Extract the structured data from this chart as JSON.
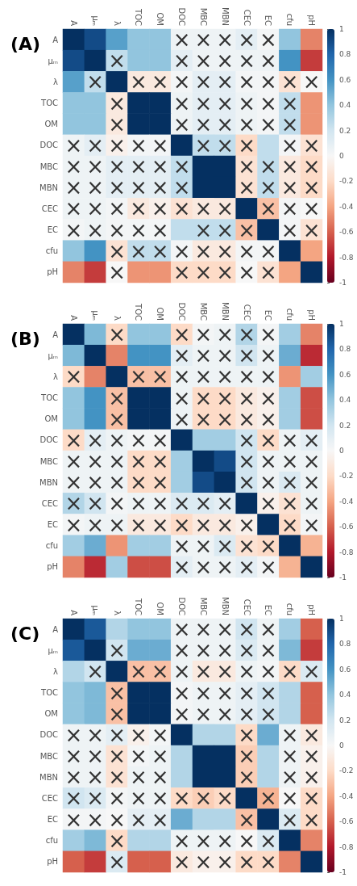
{
  "chart_data": [
    {
      "type": "heatmap",
      "title": "(A)",
      "categories": [
        "A",
        "μₘ",
        "λ",
        "TOC",
        "OM",
        "DOC",
        "MBC",
        "MBN",
        "CEC",
        "EC",
        "cfu",
        "pH"
      ],
      "y_categories": [
        "A",
        "μₘ",
        "λ",
        "TOC",
        "OM",
        "DOC",
        "MBC",
        "MBN",
        "CEC",
        "EC",
        "cfu",
        "pH"
      ],
      "clim": [
        -1,
        1
      ],
      "cticks": [
        -1,
        -0.8,
        -0.6,
        -0.4,
        -0.2,
        0,
        0.2,
        0.4,
        0.6,
        0.8,
        1
      ],
      "cells": [
        [
          1,
          0.9,
          0.55,
          0.4,
          0.4,
          0.05,
          0.05,
          0.05,
          0.1,
          0.02,
          0.4,
          -0.5
        ],
        [
          0.9,
          1,
          0.25,
          0.4,
          0.4,
          0.1,
          0.05,
          0.05,
          0.05,
          0.05,
          0.6,
          -0.7
        ],
        [
          0.55,
          0.25,
          1,
          -0.1,
          -0.1,
          0.02,
          0.1,
          0.1,
          0.02,
          0.02,
          -0.15,
          0
        ],
        [
          0.4,
          0.4,
          -0.1,
          1,
          1,
          0.05,
          0.1,
          0.1,
          0.05,
          0.02,
          0.25,
          -0.45
        ],
        [
          0.4,
          0.4,
          -0.1,
          1,
          1,
          0.05,
          0.1,
          0.1,
          0.05,
          0.02,
          0.25,
          -0.45
        ],
        [
          0.05,
          0.1,
          -0.05,
          0.02,
          0.02,
          1,
          0.25,
          0.25,
          -0.2,
          0.25,
          0.02,
          -0.15
        ],
        [
          0.05,
          0.05,
          0.1,
          0.1,
          0.1,
          0.25,
          1,
          1,
          -0.15,
          0.25,
          -0.1,
          -0.2
        ],
        [
          0.05,
          0.05,
          0.1,
          0.1,
          0.1,
          0.25,
          1,
          1,
          -0.15,
          0.25,
          -0.1,
          -0.2
        ],
        [
          0.05,
          0.05,
          0.02,
          -0.1,
          -0.05,
          -0.15,
          -0.1,
          -0.1,
          1,
          -0.3,
          0.02,
          0
        ],
        [
          0.02,
          0.05,
          0.02,
          0.02,
          0.02,
          0.25,
          0.25,
          0.25,
          -0.3,
          1,
          0.02,
          -0.15
        ],
        [
          0.4,
          0.6,
          -0.15,
          0.25,
          0.25,
          0.02,
          -0.1,
          -0.1,
          0.02,
          0.02,
          1,
          -0.4
        ],
        [
          -0.5,
          -0.7,
          0,
          -0.45,
          -0.45,
          -0.2,
          -0.2,
          -0.2,
          0,
          -0.15,
          -0.4,
          1
        ]
      ],
      "cell_labels": [
        [
          null,
          null,
          null,
          null,
          null,
          "×",
          "×",
          "×",
          "×",
          "×",
          null,
          null
        ],
        [
          null,
          null,
          "×",
          null,
          null,
          "×",
          "×",
          "×",
          "×",
          "×",
          null,
          null
        ],
        [
          null,
          "×",
          null,
          "×",
          "×",
          "×",
          "×",
          "×",
          "×",
          "×",
          "×",
          "×"
        ],
        [
          null,
          null,
          "×",
          null,
          null,
          "×",
          "×",
          "×",
          "×",
          "×",
          "×",
          null
        ],
        [
          null,
          null,
          "×",
          null,
          null,
          "×",
          "×",
          "×",
          "×",
          "×",
          "×",
          null
        ],
        [
          "×",
          "×",
          "×",
          "×",
          "×",
          null,
          "×",
          "×",
          "×",
          null,
          "×",
          "×"
        ],
        [
          "×",
          "×",
          "×",
          "×",
          "×",
          "×",
          null,
          null,
          "×",
          "×",
          "×",
          "×"
        ],
        [
          "×",
          "×",
          "×",
          "×",
          "×",
          "×",
          null,
          null,
          "×",
          "×",
          "×",
          "×"
        ],
        [
          "×",
          "×",
          "×",
          "×",
          "×",
          "×",
          "×",
          "×",
          null,
          "×",
          "×",
          "×"
        ],
        [
          "×",
          "×",
          "×",
          "×",
          "×",
          null,
          "×",
          "×",
          "×",
          null,
          "×",
          "×"
        ],
        [
          null,
          null,
          "×",
          "×",
          "×",
          "×",
          "×",
          "×",
          "×",
          "×",
          null,
          null
        ],
        [
          null,
          null,
          "×",
          null,
          null,
          "×",
          "×",
          "×",
          "×",
          "×",
          null,
          null
        ]
      ]
    },
    {
      "type": "heatmap",
      "title": "(B)",
      "categories": [
        "A",
        "μₘ",
        "λ",
        "TOC",
        "OM",
        "DOC",
        "MBC",
        "MBN",
        "CEC",
        "EC",
        "cfu",
        "pH"
      ],
      "y_categories": [
        "A",
        "μₘ",
        "λ",
        "TOC",
        "OM",
        "DOC",
        "MBC",
        "MBN",
        "CEC",
        "EC",
        "cfu",
        "pH"
      ],
      "clim": [
        -1,
        1
      ],
      "cticks": [
        -1,
        -0.8,
        -0.6,
        -0.4,
        -0.2,
        0,
        0.2,
        0.4,
        0.6,
        0.8,
        1
      ],
      "cells": [
        [
          1,
          0.45,
          -0.2,
          0.4,
          0.4,
          -0.2,
          0.02,
          0.05,
          0.3,
          0.02,
          0.35,
          -0.5
        ],
        [
          0.45,
          1,
          -0.5,
          0.6,
          0.6,
          0.1,
          0.05,
          0.05,
          0.2,
          0.05,
          0.5,
          -0.75
        ],
        [
          -0.2,
          -0.5,
          1,
          -0.3,
          -0.3,
          0.05,
          0.05,
          0.05,
          0.05,
          0.05,
          -0.45,
          0.35
        ],
        [
          0.4,
          0.6,
          -0.3,
          1,
          1,
          0.05,
          -0.2,
          -0.2,
          -0.1,
          -0.05,
          0.35,
          -0.65
        ],
        [
          0.4,
          0.6,
          -0.3,
          1,
          1,
          0.05,
          -0.2,
          -0.2,
          -0.1,
          -0.05,
          0.35,
          -0.65
        ],
        [
          -0.2,
          0.1,
          0.05,
          0.02,
          0.02,
          1,
          0.35,
          0.35,
          0.2,
          -0.2,
          0.05,
          0.1
        ],
        [
          0.05,
          0.05,
          0.05,
          -0.2,
          -0.2,
          0.35,
          1,
          0.9,
          0.2,
          0.05,
          0.05,
          0.05
        ],
        [
          0.05,
          0.05,
          0.05,
          -0.2,
          -0.2,
          0.35,
          0.9,
          1,
          0.2,
          0.05,
          0.15,
          0.05
        ],
        [
          0.3,
          0.2,
          0.02,
          0.05,
          0.05,
          0.15,
          0.15,
          0.1,
          1,
          -0.05,
          -0.15,
          0.05
        ],
        [
          0.02,
          0.05,
          0.05,
          -0.1,
          -0.1,
          -0.2,
          -0.1,
          -0.1,
          -0.05,
          1,
          -0.2,
          0.02
        ],
        [
          0.35,
          0.5,
          -0.45,
          0.35,
          0.35,
          0.05,
          0.05,
          0.15,
          -0.15,
          -0.2,
          1,
          -0.35
        ],
        [
          -0.5,
          -0.75,
          0.35,
          -0.65,
          -0.65,
          0.1,
          0.05,
          0.05,
          0.1,
          0.02,
          -0.35,
          1
        ]
      ],
      "cell_labels": [
        [
          null,
          null,
          "×",
          null,
          null,
          "×",
          "×",
          "×",
          "×",
          "×",
          null,
          null
        ],
        [
          null,
          null,
          null,
          null,
          null,
          "×",
          "×",
          "×",
          "×",
          "×",
          null,
          null
        ],
        [
          "×",
          null,
          null,
          "×",
          "×",
          "×",
          "×",
          "×",
          "×",
          "×",
          null,
          null
        ],
        [
          null,
          null,
          "×",
          null,
          null,
          "×",
          "×",
          "×",
          "×",
          "×",
          null,
          null
        ],
        [
          null,
          null,
          "×",
          null,
          null,
          "×",
          "×",
          "×",
          "×",
          "×",
          null,
          null
        ],
        [
          "×",
          "×",
          "×",
          "×",
          "×",
          null,
          null,
          null,
          "×",
          "×",
          "×",
          "×"
        ],
        [
          "×",
          "×",
          "×",
          "×",
          "×",
          null,
          null,
          null,
          "×",
          "×",
          "×",
          "×"
        ],
        [
          "×",
          "×",
          "×",
          "×",
          "×",
          null,
          null,
          null,
          "×",
          "×",
          "×",
          "×"
        ],
        [
          "×",
          "×",
          "×",
          "×",
          "×",
          "×",
          "×",
          "×",
          null,
          "×",
          "×",
          "×"
        ],
        [
          "×",
          "×",
          "×",
          "×",
          "×",
          "×",
          "×",
          "×",
          "×",
          null,
          "×",
          "×"
        ],
        [
          null,
          null,
          null,
          null,
          null,
          "×",
          "×",
          "×",
          "×",
          "×",
          null,
          null
        ],
        [
          null,
          null,
          null,
          null,
          null,
          "×",
          "×",
          "×",
          "×",
          "×",
          null,
          null
        ]
      ]
    },
    {
      "type": "heatmap",
      "title": "(C)",
      "categories": [
        "A",
        "μₘ",
        "λ",
        "TOC",
        "OM",
        "DOC",
        "MBC",
        "MBN",
        "CEC",
        "EC",
        "cfu",
        "pH"
      ],
      "y_categories": [
        "A",
        "μₘ",
        "λ",
        "TOC",
        "OM",
        "DOC",
        "MBC",
        "MBN",
        "CEC",
        "EC",
        "cfu",
        "pH"
      ],
      "clim": [
        -1,
        1
      ],
      "cticks": [
        -1,
        -0.8,
        -0.6,
        -0.4,
        -0.2,
        0,
        0.2,
        0.4,
        0.6,
        0.8,
        1
      ],
      "cells": [
        [
          1,
          0.85,
          0.3,
          0.4,
          0.4,
          0.05,
          0.05,
          0.05,
          0.2,
          0.05,
          0.35,
          -0.6
        ],
        [
          0.85,
          1,
          0.2,
          0.5,
          0.5,
          0.05,
          0.05,
          0.05,
          0.15,
          0.05,
          0.45,
          -0.7
        ],
        [
          0.3,
          0.2,
          1,
          -0.3,
          -0.3,
          0.05,
          -0.1,
          -0.1,
          0.05,
          0.02,
          -0.2,
          0.15
        ],
        [
          0.4,
          0.45,
          -0.3,
          1,
          1,
          0.02,
          0.05,
          0.05,
          0.1,
          0.2,
          0.3,
          -0.6
        ],
        [
          0.4,
          0.45,
          -0.3,
          1,
          1,
          0.02,
          0.05,
          0.05,
          0.1,
          0.2,
          0.3,
          -0.6
        ],
        [
          0.05,
          0.05,
          0.1,
          -0.05,
          0.02,
          1,
          0.3,
          0.3,
          -0.2,
          0.5,
          0.05,
          -0.1
        ],
        [
          0.05,
          0.05,
          -0.15,
          0.02,
          0.05,
          0.3,
          1,
          1,
          -0.25,
          0.3,
          0.05,
          -0.05
        ],
        [
          0.05,
          0.05,
          -0.15,
          0.05,
          0.05,
          0.3,
          1,
          1,
          -0.25,
          0.3,
          0.05,
          -0.05
        ],
        [
          0.2,
          0.15,
          0.02,
          0.05,
          0.05,
          -0.2,
          -0.25,
          -0.2,
          1,
          -0.35,
          0,
          -0.2
        ],
        [
          0.02,
          0.02,
          0,
          0.1,
          0.1,
          0.5,
          0.3,
          0.3,
          -0.3,
          1,
          0.15,
          -0.2
        ],
        [
          0.35,
          0.45,
          -0.2,
          0.3,
          0.3,
          0.05,
          0.05,
          0.05,
          0,
          0.15,
          1,
          -0.5
        ],
        [
          -0.6,
          -0.7,
          0.15,
          -0.6,
          -0.6,
          -0.1,
          -0.05,
          -0.05,
          -0.2,
          -0.2,
          -0.5,
          1
        ]
      ],
      "cell_labels": [
        [
          null,
          null,
          null,
          null,
          null,
          "×",
          "×",
          "×",
          "×",
          "×",
          null,
          null
        ],
        [
          null,
          null,
          "×",
          null,
          null,
          "×",
          "×",
          "×",
          "×",
          "×",
          null,
          null
        ],
        [
          null,
          "×",
          null,
          "×",
          "×",
          "×",
          "×",
          "×",
          "×",
          "×",
          "×",
          "×"
        ],
        [
          null,
          null,
          "×",
          null,
          null,
          "×",
          "×",
          "×",
          "×",
          "×",
          null,
          null
        ],
        [
          null,
          null,
          "×",
          null,
          null,
          "×",
          "×",
          "×",
          "×",
          "×",
          null,
          null
        ],
        [
          "×",
          "×",
          "×",
          "×",
          "×",
          null,
          null,
          null,
          "×",
          null,
          "×",
          "×"
        ],
        [
          "×",
          "×",
          "×",
          "×",
          "×",
          null,
          null,
          null,
          "×",
          null,
          "×",
          "×"
        ],
        [
          "×",
          "×",
          "×",
          "×",
          "×",
          null,
          null,
          null,
          "×",
          null,
          "×",
          "×"
        ],
        [
          "×",
          "×",
          "×",
          "×",
          "×",
          "×",
          "×",
          "×",
          null,
          "×",
          "×",
          "×"
        ],
        [
          "×",
          "×",
          "×",
          "×",
          "×",
          null,
          null,
          null,
          "×",
          null,
          "×",
          "×"
        ],
        [
          null,
          null,
          "×",
          null,
          null,
          "×",
          "×",
          "×",
          "×",
          "×",
          null,
          null
        ],
        [
          null,
          null,
          "×",
          null,
          null,
          "×",
          "×",
          "×",
          "×",
          "×",
          null,
          null
        ]
      ]
    }
  ]
}
